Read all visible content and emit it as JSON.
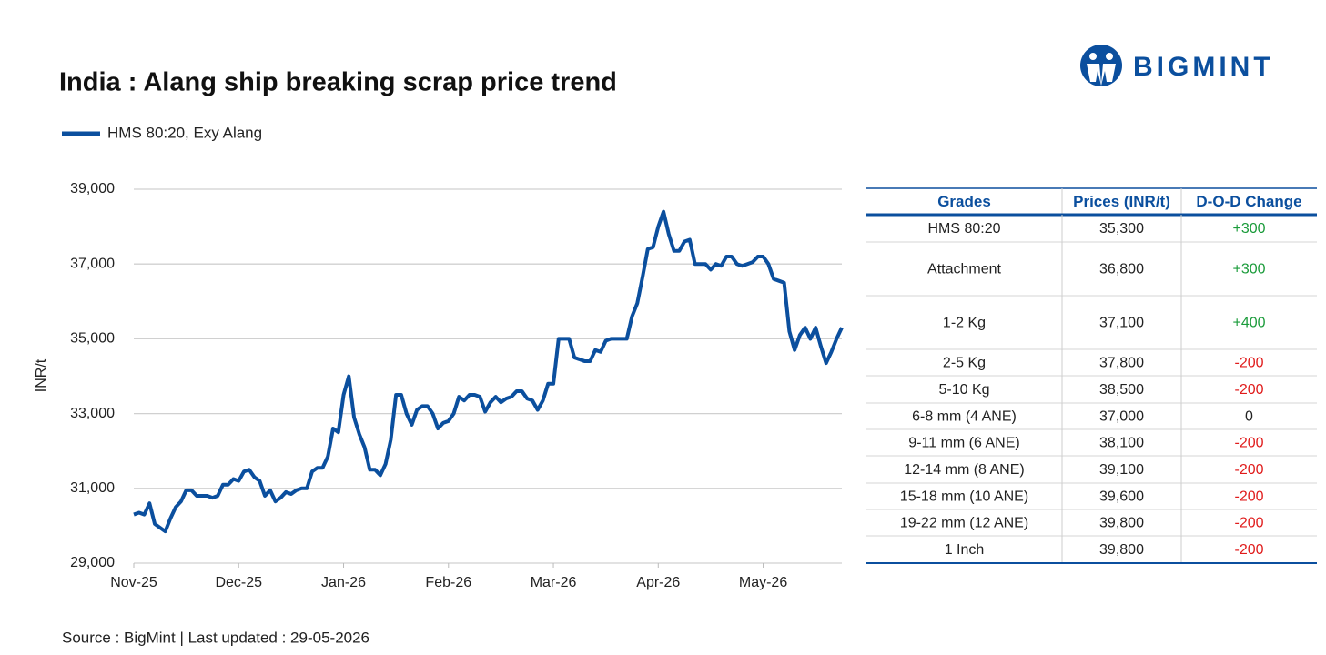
{
  "logo": "BIGMINT",
  "chart_data": {
    "type": "line",
    "title": "India : Alang ship breaking scrap price trend",
    "y_label": "INR/t",
    "source": "Source : BigMint | Last updated : 29-05-2026",
    "categories": [
      "Nov-25",
      null,
      null,
      null,
      null,
      null,
      null,
      null,
      null,
      null,
      null,
      null,
      null,
      null,
      null,
      null,
      null,
      null,
      null,
      null,
      "Dec-25",
      null,
      null,
      null,
      null,
      null,
      null,
      null,
      null,
      null,
      null,
      null,
      null,
      null,
      null,
      null,
      null,
      null,
      null,
      null,
      "Jan-26",
      null,
      null,
      null,
      null,
      null,
      null,
      null,
      null,
      null,
      null,
      null,
      null,
      null,
      null,
      null,
      null,
      null,
      null,
      null,
      "Feb-26",
      null,
      null,
      null,
      null,
      null,
      null,
      null,
      null,
      null,
      null,
      null,
      null,
      null,
      null,
      null,
      null,
      null,
      null,
      null,
      "Mar-26",
      null,
      null,
      null,
      null,
      null,
      null,
      null,
      null,
      null,
      null,
      null,
      null,
      null,
      null,
      null,
      null,
      null,
      null,
      null,
      "Apr-26",
      null,
      null,
      null,
      null,
      null,
      null,
      null,
      null,
      null,
      null,
      null,
      null,
      null,
      null,
      null,
      null,
      null,
      null,
      null,
      "May-26",
      null,
      null,
      null,
      null,
      null,
      null,
      null,
      null,
      null,
      null,
      null,
      null,
      null,
      null,
      null
    ],
    "series": [
      {
        "name": "HMS 80:20, Exy Alang",
        "color": "#0b4f9e",
        "values": [
          30300,
          30350,
          30300,
          30600,
          30050,
          29950,
          29850,
          30200,
          30500,
          30650,
          30950,
          30950,
          30800,
          30800,
          30800,
          30750,
          30800,
          31100,
          31100,
          31250,
          31200,
          31450,
          31500,
          31300,
          31200,
          30800,
          30950,
          30650,
          30750,
          30900,
          30850,
          30950,
          31000,
          31000,
          31450,
          31550,
          31550,
          31850,
          32600,
          32500,
          33500,
          34000,
          32900,
          32450,
          32100,
          31500,
          31500,
          31350,
          31650,
          32300,
          33500,
          33500,
          33000,
          32700,
          33100,
          33200,
          33200,
          33000,
          32600,
          32750,
          32800,
          33000,
          33450,
          33350,
          33500,
          33500,
          33450,
          33050,
          33300,
          33450,
          33300,
          33400,
          33450,
          33600,
          33600,
          33400,
          33350,
          33100,
          33350,
          33800,
          33800,
          35000,
          35000,
          35000,
          34500,
          34450,
          34400,
          34400,
          34700,
          34650,
          34950,
          35000,
          35000,
          35000,
          35000,
          35600,
          35950,
          36650,
          37400,
          37450,
          38000,
          38400,
          37800,
          37350,
          37350,
          37600,
          37650,
          37000,
          37000,
          37000,
          36850,
          37000,
          36950,
          37200,
          37200,
          37000,
          36950,
          37000,
          37050,
          37200,
          37200,
          37000,
          36600,
          36550,
          36500,
          35200,
          34700,
          35100,
          35300,
          35000,
          35300,
          34800,
          34350,
          34650,
          35000,
          35300
        ]
      }
    ],
    "ylim": [
      29000,
      39000
    ],
    "yticks": [
      {
        "value": 29000,
        "label": "29,000"
      },
      {
        "value": 31000,
        "label": "31,000"
      },
      {
        "value": 33000,
        "label": "33,000"
      },
      {
        "value": 35000,
        "label": "35,000"
      },
      {
        "value": 37000,
        "label": "37,000"
      },
      {
        "value": 39000,
        "label": "39,000"
      }
    ],
    "grid": true
  },
  "table": {
    "header": [
      "Grades",
      "Prices (INR/t)",
      "D-O-D Change"
    ],
    "rows": [
      [
        "HMS 80:20",
        "35,300",
        "+300"
      ],
      [
        "Attachment",
        "36,800",
        "+300"
      ],
      [
        "1-2 Kg",
        "37,100",
        "+400"
      ],
      [
        "2-5 Kg",
        "37,800",
        "-200"
      ],
      [
        "5-10 Kg",
        "38,500",
        "-200"
      ],
      [
        "6-8 mm (4 ANE)",
        "37,000",
        "0"
      ],
      [
        "9-11 mm (6 ANE)",
        "38,100",
        "-200"
      ],
      [
        "12-14 mm (8 ANE)",
        "39,100",
        "-200"
      ],
      [
        "15-18 mm (10 ANE)",
        "39,600",
        "-200"
      ],
      [
        "19-22 mm (12 ANE)",
        "39,800",
        "-200"
      ],
      [
        "1 Inch",
        "39,800",
        "-200"
      ]
    ]
  }
}
